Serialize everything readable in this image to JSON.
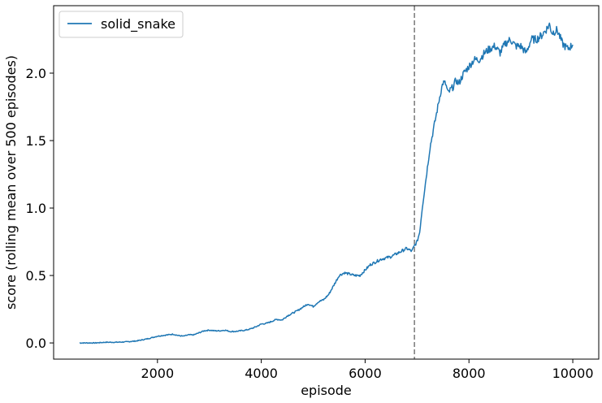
{
  "chart_data": {
    "type": "line",
    "xlabel": "episode",
    "ylabel": "score (rolling mean over 500 episodes)",
    "xlim": [
      0,
      10500
    ],
    "ylim": [
      -0.12,
      2.5
    ],
    "xticks": [
      2000,
      4000,
      6000,
      8000,
      10000
    ],
    "xtick_labels": [
      "2000",
      "4000",
      "6000",
      "8000",
      "10000"
    ],
    "yticks": [
      0.0,
      0.5,
      1.0,
      1.5,
      2.0
    ],
    "ytick_labels": [
      "0.0",
      "0.5",
      "1.0",
      "1.5",
      "2.0"
    ],
    "grid": false,
    "legend": {
      "position": "top-left"
    },
    "vline": {
      "x": 6950,
      "color": "#808080",
      "style": "dashed"
    },
    "series": [
      {
        "name": "solid_snake",
        "color": "#1f77b4",
        "x": [
          500,
          800,
          1000,
          1200,
          1400,
          1600,
          1800,
          1900,
          2000,
          2100,
          2200,
          2300,
          2400,
          2500,
          2600,
          2700,
          2800,
          2900,
          3000,
          3100,
          3200,
          3300,
          3400,
          3500,
          3600,
          3700,
          3800,
          3900,
          4000,
          4100,
          4200,
          4300,
          4400,
          4500,
          4600,
          4700,
          4800,
          4900,
          5000,
          5100,
          5200,
          5300,
          5400,
          5500,
          5600,
          5700,
          5800,
          5900,
          6000,
          6100,
          6200,
          6300,
          6400,
          6500,
          6600,
          6700,
          6800,
          6900,
          6950,
          7000,
          7050,
          7100,
          7150,
          7200,
          7250,
          7300,
          7350,
          7400,
          7450,
          7500,
          7550,
          7600,
          7650,
          7700,
          7750,
          7800,
          7900,
          8000,
          8100,
          8200,
          8300,
          8400,
          8500,
          8600,
          8700,
          8800,
          8900,
          9000,
          9100,
          9200,
          9300,
          9400,
          9500,
          9550,
          9600,
          9700,
          9800,
          9900,
          10000
        ],
        "values": [
          0.0,
          0.0,
          0.005,
          0.005,
          0.008,
          0.015,
          0.03,
          0.04,
          0.05,
          0.055,
          0.06,
          0.065,
          0.055,
          0.05,
          0.06,
          0.06,
          0.075,
          0.09,
          0.095,
          0.09,
          0.09,
          0.095,
          0.085,
          0.085,
          0.09,
          0.095,
          0.105,
          0.12,
          0.14,
          0.145,
          0.16,
          0.175,
          0.17,
          0.2,
          0.22,
          0.24,
          0.265,
          0.29,
          0.27,
          0.305,
          0.32,
          0.36,
          0.43,
          0.5,
          0.52,
          0.51,
          0.5,
          0.5,
          0.54,
          0.58,
          0.6,
          0.62,
          0.63,
          0.64,
          0.66,
          0.68,
          0.7,
          0.68,
          0.72,
          0.75,
          0.82,
          1.0,
          1.15,
          1.3,
          1.45,
          1.55,
          1.65,
          1.75,
          1.85,
          1.93,
          1.92,
          1.85,
          1.88,
          1.9,
          1.95,
          1.92,
          2.0,
          2.05,
          2.1,
          2.1,
          2.15,
          2.18,
          2.2,
          2.15,
          2.22,
          2.25,
          2.2,
          2.2,
          2.15,
          2.25,
          2.25,
          2.28,
          2.33,
          2.36,
          2.3,
          2.32,
          2.22,
          2.18,
          2.21
        ]
      }
    ]
  }
}
